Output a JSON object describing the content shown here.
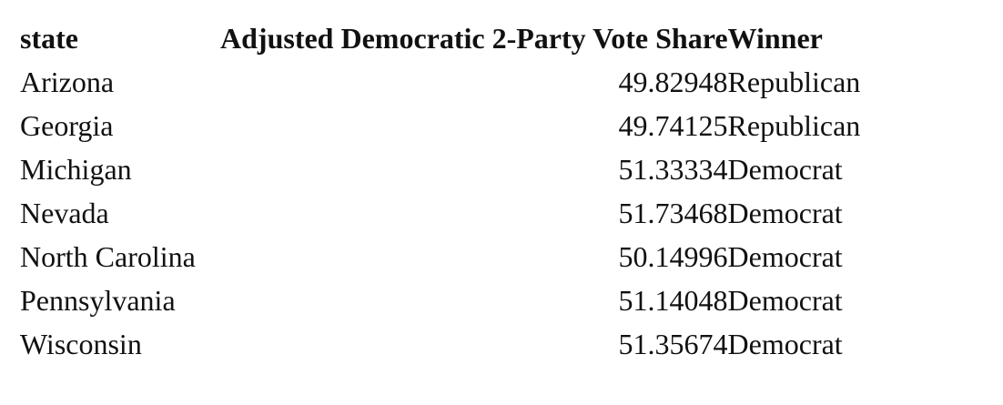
{
  "table": {
    "headers": {
      "state": "state",
      "share": "Adjusted Democratic 2-Party Vote Share",
      "winner": "Winner"
    },
    "rows": [
      {
        "state": "Arizona",
        "share": "49.82948",
        "winner": "Republican"
      },
      {
        "state": "Georgia",
        "share": "49.74125",
        "winner": "Republican"
      },
      {
        "state": "Michigan",
        "share": "51.33334",
        "winner": "Democrat"
      },
      {
        "state": "Nevada",
        "share": "51.73468",
        "winner": "Democrat"
      },
      {
        "state": "North Carolina",
        "share": "50.14996",
        "winner": "Democrat"
      },
      {
        "state": "Pennsylvania",
        "share": "51.14048",
        "winner": "Democrat"
      },
      {
        "state": "Wisconsin",
        "share": "51.35674",
        "winner": "Democrat"
      }
    ]
  }
}
